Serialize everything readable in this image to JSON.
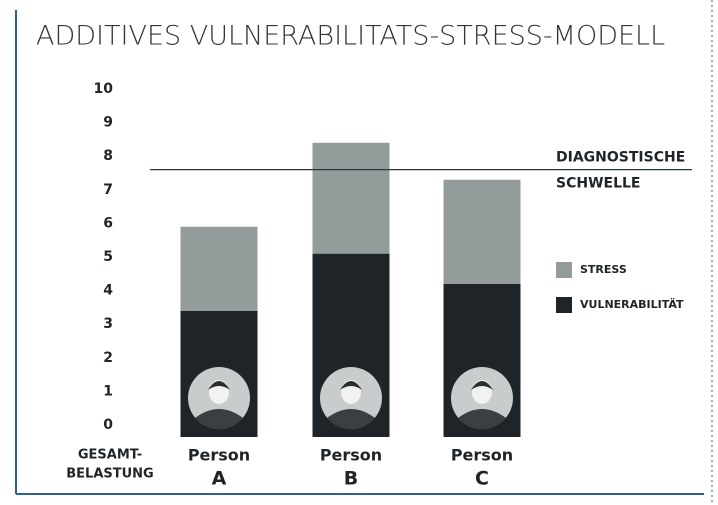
{
  "chart_data": {
    "type": "stacked_bar",
    "title": "ADDITIVES VULNERABILITATS-STRESS-MODELL",
    "x_label_lines": [
      "GESAMT-",
      "BELASTUNG"
    ],
    "categories": [
      [
        "Person",
        "A"
      ],
      [
        "Person",
        "B"
      ],
      [
        "Person",
        "C"
      ]
    ],
    "series": [
      {
        "name": "VULNERABILITÄT",
        "color": "#1f2428",
        "values": [
          3.4,
          5.1,
          4.2
        ]
      },
      {
        "name": "STRESS",
        "color": "#939b9b",
        "values": [
          2.5,
          3.3,
          3.1
        ]
      }
    ],
    "threshold": {
      "value": 7.6,
      "label_lines": [
        "DIAGNOSTISCHE",
        "SCHWELLE"
      ]
    },
    "ylim": [
      0,
      10
    ],
    "yticks": [
      0,
      1,
      2,
      3,
      4,
      5,
      6,
      7,
      8,
      9,
      10
    ]
  }
}
